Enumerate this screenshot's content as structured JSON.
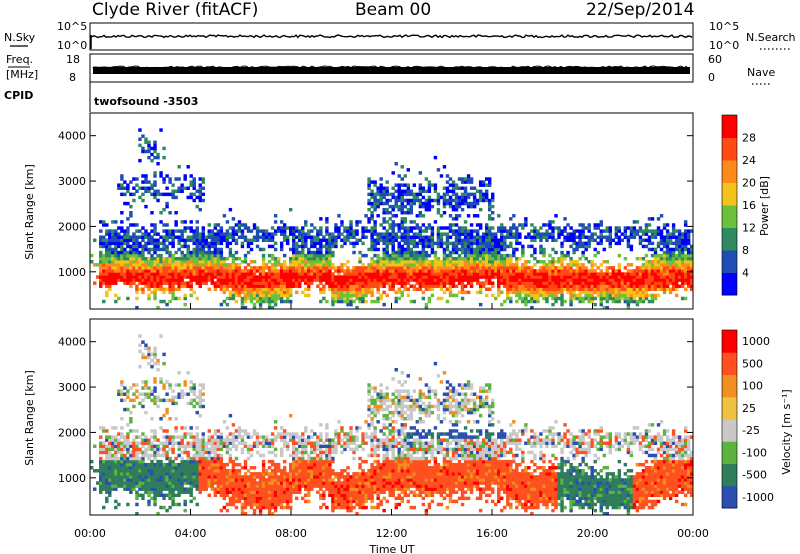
{
  "header": {
    "station": "Clyde River (fitACF)",
    "beam": "Beam 00",
    "date": "22/Sep/2014"
  },
  "panels": {
    "nsky_label": "N.Sky",
    "nsearch_label": "N.Search",
    "nsky_ticks": [
      "10^5",
      "10^0"
    ],
    "nsearch_ticks": [
      "10^5",
      "10^0"
    ],
    "freq_label": [
      "Freq.",
      "[MHz]"
    ],
    "freq_ticks": [
      "18",
      "8"
    ],
    "nave_label": "Nave",
    "nave_ticks": [
      "60",
      "0"
    ],
    "cpid_label": "CPID",
    "cpid_text": "twofsound  -3503"
  },
  "chart_data": [
    {
      "type": "heatmap",
      "title": "",
      "ylabel": "Slant Range [km]",
      "xlabel": "",
      "ylim": [
        180,
        4500
      ],
      "yticks": [
        1000,
        2000,
        3000,
        4000
      ],
      "xlim": [
        0,
        24
      ],
      "colorbar_label": "Power [dB]",
      "colorbar_ticks": [
        "4",
        "8",
        "12",
        "16",
        "20",
        "24",
        "28"
      ],
      "colorbar": [
        "#0000ff",
        "#1e4db3",
        "#2f8a5f",
        "#6bc13b",
        "#f2c31a",
        "#ff8a1a",
        "#ff4a14",
        "#ff0000"
      ],
      "range_profile": [
        {
          "range_km": 700,
          "value": 28
        },
        {
          "range_km": 1000,
          "value": 26
        },
        {
          "range_km": 1300,
          "value": 16
        },
        {
          "range_km": 1700,
          "value": 12
        },
        {
          "range_km": 2100,
          "value": 10
        },
        {
          "range_km": 2700,
          "value": 6
        }
      ]
    },
    {
      "type": "heatmap",
      "title": "",
      "ylabel": "Slant Range [km]",
      "xlabel": "Time UT",
      "ylim": [
        180,
        4500
      ],
      "yticks": [
        1000,
        2000,
        3000,
        4000
      ],
      "xlim": [
        0,
        24
      ],
      "xticks": [
        "00:00",
        "04:00",
        "08:00",
        "12:00",
        "16:00",
        "20:00",
        "00:00"
      ],
      "colorbar_label": "Velocity  [m s⁻¹]",
      "colorbar_ticks": [
        "1000",
        "500",
        "100",
        "25",
        "-25",
        "-100",
        "-500",
        "-1000"
      ],
      "colorbar": [
        "#2a4fb0",
        "#2f7d5a",
        "#5cb340",
        "#c8c8c8",
        "#f0c040",
        "#f09020",
        "#ff5020",
        "#ff0000"
      ]
    }
  ]
}
